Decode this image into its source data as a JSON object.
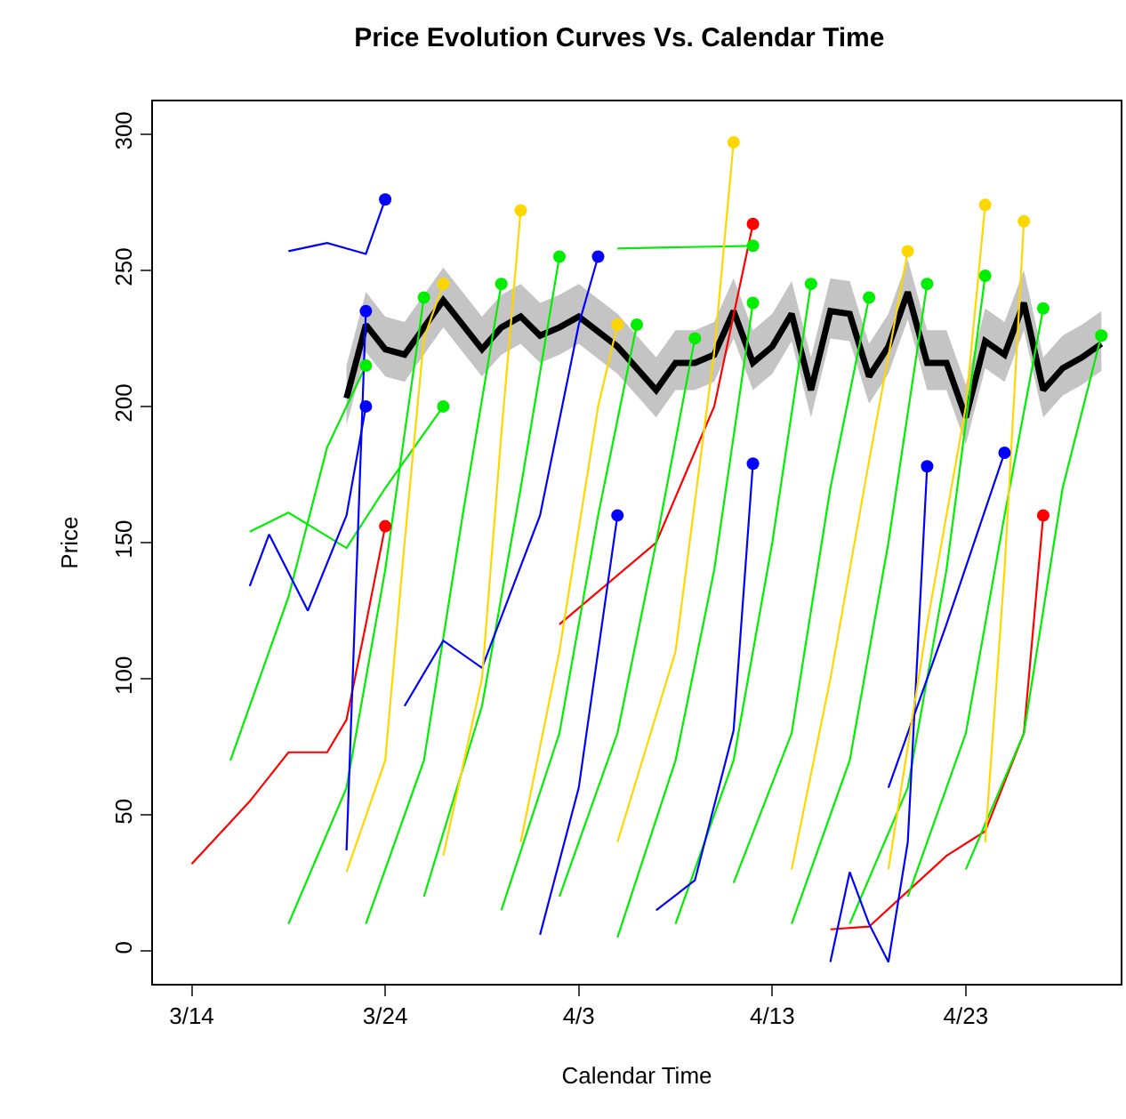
{
  "chart_data": {
    "type": "line",
    "title": "Price Evolution Curves Vs. Calendar Time",
    "xlabel": "Calendar Time",
    "ylabel": "Price",
    "xlim": [
      "--03-12",
      "--05-01"
    ],
    "xticks": [
      {
        "value": "--03-14",
        "label": "3/14"
      },
      {
        "value": "--03-24",
        "label": "3/24"
      },
      {
        "value": "--04-03",
        "label": "4/3"
      },
      {
        "value": "--04-13",
        "label": "4/13"
      },
      {
        "value": "--04-23",
        "label": "4/23"
      }
    ],
    "ylim": [
      -12,
      312
    ],
    "yticks": [
      0,
      50,
      100,
      150,
      200,
      250,
      300
    ],
    "line_style": "solid",
    "series": [
      {
        "color": "#ff0000",
        "x": [
          "--03-14",
          "--03-17",
          "--03-19",
          "--03-21",
          "--03-22",
          "--03-23",
          "--03-24"
        ],
        "values": [
          32,
          55,
          73,
          73,
          85,
          120,
          156
        ]
      },
      {
        "color": "#ff0000",
        "x": [
          "--04-02",
          "--04-07",
          "--04-10",
          "--04-12"
        ],
        "values": [
          120,
          150,
          200,
          267
        ]
      },
      {
        "color": "#ff0000",
        "x": [
          "--04-16",
          "--04-18",
          "--04-22",
          "--04-24",
          "--04-26",
          "--04-27"
        ],
        "values": [
          8,
          9,
          35,
          44,
          80,
          160
        ]
      },
      {
        "color": "#00ee00",
        "x": [
          "--03-16",
          "--03-19",
          "--03-21",
          "--03-23"
        ],
        "values": [
          70,
          130,
          185,
          215
        ]
      },
      {
        "color": "#00ee00",
        "x": [
          "--03-19",
          "--03-22",
          "--03-24",
          "--03-26"
        ],
        "values": [
          10,
          60,
          140,
          240
        ]
      },
      {
        "color": "#00ee00",
        "x": [
          "--03-23",
          "--03-26",
          "--03-28",
          "--03-30"
        ],
        "values": [
          10,
          70,
          160,
          245
        ]
      },
      {
        "color": "#00ee00",
        "x": [
          "--03-26",
          "--03-29",
          "--03-31",
          "--04-02"
        ],
        "values": [
          20,
          90,
          170,
          255
        ]
      },
      {
        "color": "#00ee00",
        "x": [
          "--03-30",
          "--04-02",
          "--04-04",
          "--04-06"
        ],
        "values": [
          15,
          80,
          160,
          230
        ]
      },
      {
        "color": "#00ee00",
        "x": [
          "--04-02",
          "--04-05",
          "--04-07",
          "--04-09"
        ],
        "values": [
          20,
          80,
          150,
          225
        ]
      },
      {
        "color": "#00ee00",
        "x": [
          "--04-05",
          "--04-08",
          "--04-10",
          "--04-12"
        ],
        "values": [
          5,
          70,
          140,
          238
        ]
      },
      {
        "color": "#00ee00",
        "x": [
          "--04-08",
          "--04-11",
          "--04-13",
          "--04-15"
        ],
        "values": [
          10,
          70,
          150,
          245
        ]
      },
      {
        "color": "#00ee00",
        "x": [
          "--04-11",
          "--04-14",
          "--04-16",
          "--04-18"
        ],
        "values": [
          25,
          80,
          170,
          240
        ]
      },
      {
        "color": "#00ee00",
        "x": [
          "--04-14",
          "--04-17",
          "--04-19",
          "--04-21"
        ],
        "values": [
          10,
          70,
          150,
          245
        ]
      },
      {
        "color": "#00ee00",
        "x": [
          "--04-17",
          "--04-20",
          "--04-22",
          "--04-24"
        ],
        "values": [
          10,
          60,
          140,
          248
        ]
      },
      {
        "color": "#00ee00",
        "x": [
          "--04-20",
          "--04-23",
          "--04-25",
          "--04-27"
        ],
        "values": [
          20,
          80,
          160,
          236
        ]
      },
      {
        "color": "#00ee00",
        "x": [
          "--04-23",
          "--04-26",
          "--04-28",
          "--04-30"
        ],
        "values": [
          30,
          80,
          170,
          226
        ]
      },
      {
        "color": "#00ee00",
        "x": [
          "--03-17",
          "--03-19",
          "--03-22",
          "--03-24",
          "--03-27"
        ],
        "values": [
          154,
          161,
          148,
          170,
          200
        ]
      },
      {
        "color": "#00ee00",
        "x": [
          "--04-05",
          "--04-12"
        ],
        "values": [
          258,
          259
        ]
      },
      {
        "color": "#0000ff",
        "x": [
          "--03-17",
          "--03-18",
          "--03-20",
          "--03-22",
          "--03-23"
        ],
        "values": [
          134,
          153,
          125,
          160,
          200
        ]
      },
      {
        "color": "#0000ff",
        "x": [
          "--03-22",
          "--03-23"
        ],
        "values": [
          37,
          235
        ]
      },
      {
        "color": "#0000ff",
        "x": [
          "--03-25",
          "--03-27",
          "--03-29",
          "--04-01",
          "--04-03",
          "--04-04"
        ],
        "values": [
          90,
          114,
          104,
          160,
          230,
          255
        ]
      },
      {
        "color": "#0000ff",
        "x": [
          "--04-01",
          "--04-03",
          "--04-05"
        ],
        "values": [
          6,
          60,
          160
        ]
      },
      {
        "color": "#0000ff",
        "x": [
          "--04-07",
          "--04-09",
          "--04-11",
          "--04-12"
        ],
        "values": [
          15,
          26,
          81,
          179
        ]
      },
      {
        "color": "#0000ff",
        "x": [
          "--04-16",
          "--04-17",
          "--04-18",
          "--04-19",
          "--04-20",
          "--04-21"
        ],
        "values": [
          -4,
          29,
          10,
          -4,
          40,
          178
        ]
      },
      {
        "color": "#0000ff",
        "x": [
          "--04-19",
          "--04-22",
          "--04-25"
        ],
        "values": [
          60,
          120,
          183
        ]
      },
      {
        "color": "#0000ff",
        "x": [
          "--03-19",
          "--03-21",
          "--03-23",
          "--03-24"
        ],
        "values": [
          257,
          260,
          256,
          276
        ]
      },
      {
        "color": "#ffd700",
        "x": [
          "--03-22",
          "--03-24",
          "--03-25",
          "--03-26",
          "--03-27"
        ],
        "values": [
          29,
          70,
          150,
          225,
          245
        ]
      },
      {
        "color": "#ffd700",
        "x": [
          "--03-27",
          "--03-29",
          "--03-30",
          "--03-31"
        ],
        "values": [
          35,
          100,
          190,
          272
        ]
      },
      {
        "color": "#ffd700",
        "x": [
          "--03-31",
          "--04-02",
          "--04-04",
          "--04-05"
        ],
        "values": [
          40,
          110,
          200,
          230
        ]
      },
      {
        "color": "#ffd700",
        "x": [
          "--04-05",
          "--04-08",
          "--04-10",
          "--04-11"
        ],
        "values": [
          40,
          110,
          220,
          297
        ]
      },
      {
        "color": "#ffd700",
        "x": [
          "--04-14",
          "--04-16",
          "--04-18",
          "--04-20"
        ],
        "values": [
          30,
          100,
          180,
          257
        ]
      },
      {
        "color": "#ffd700",
        "x": [
          "--04-19",
          "--04-21",
          "--04-23",
          "--04-24"
        ],
        "values": [
          30,
          120,
          200,
          274
        ]
      },
      {
        "color": "#ffd700",
        "x": [
          "--04-24",
          "--04-25",
          "--04-26"
        ],
        "values": [
          40,
          140,
          268
        ]
      },
      {
        "type": "scatter",
        "marker": "circle",
        "x": [
          "--03-24",
          "--04-12",
          "--04-27",
          "--03-23",
          "--03-23",
          "--04-04",
          "--04-05",
          "--04-12",
          "--04-21",
          "--04-25",
          "--03-24",
          "--03-27",
          "--03-31",
          "--04-05",
          "--04-11",
          "--04-20",
          "--04-24",
          "--04-26",
          "--03-23",
          "--03-26",
          "--03-30",
          "--04-02",
          "--04-06",
          "--04-09",
          "--04-12",
          "--04-15",
          "--04-18",
          "--04-21",
          "--04-24",
          "--04-27",
          "--04-30",
          "--03-27",
          "--04-12"
        ],
        "values": [
          156,
          267,
          160,
          200,
          235,
          255,
          160,
          179,
          178,
          183,
          276,
          245,
          272,
          230,
          297,
          257,
          274,
          268,
          215,
          240,
          245,
          255,
          230,
          225,
          238,
          245,
          240,
          245,
          248,
          236,
          226,
          200,
          259
        ],
        "colors": [
          "#ff0000",
          "#ff0000",
          "#ff0000",
          "#0000ff",
          "#0000ff",
          "#0000ff",
          "#0000ff",
          "#0000ff",
          "#0000ff",
          "#0000ff",
          "#0000ff",
          "#ffd700",
          "#ffd700",
          "#ffd700",
          "#ffd700",
          "#ffd700",
          "#ffd700",
          "#ffd700",
          "#00ee00",
          "#00ee00",
          "#00ee00",
          "#00ee00",
          "#00ee00",
          "#00ee00",
          "#00ee00",
          "#00ee00",
          "#00ee00",
          "#00ee00",
          "#00ee00",
          "#00ee00",
          "#00ee00",
          "#00ee00",
          "#00ee00"
        ]
      },
      {
        "color": "#000000",
        "x": [
          "--03-22",
          "--03-23",
          "--03-24",
          "--03-25",
          "--03-27",
          "--03-29",
          "--03-30",
          "--03-31",
          "--04-01",
          "--04-02",
          "--04-03",
          "--04-05",
          "--04-07",
          "--04-08",
          "--04-09",
          "--04-10",
          "--04-11",
          "--04-12",
          "--04-13",
          "--04-14",
          "--04-15",
          "--04-16",
          "--04-17",
          "--04-18",
          "--04-19",
          "--04-20",
          "--04-21",
          "--04-22",
          "--04-23",
          "--04-24",
          "--04-25",
          "--04-26",
          "--04-27",
          "--04-28",
          "--04-29",
          "--04-30"
        ],
        "values": [
          203,
          230,
          221,
          219,
          239,
          221,
          229,
          233,
          226,
          229,
          233,
          222,
          206,
          216,
          216,
          219,
          235,
          216,
          222,
          234,
          206,
          235,
          234,
          211,
          222,
          242,
          216,
          216,
          196,
          224,
          219,
          238,
          206,
          214,
          218,
          223
        ],
        "lower": [
          193,
          220,
          211,
          209,
          229,
          211,
          219,
          223,
          216,
          219,
          223,
          212,
          196,
          206,
          206,
          209,
          225,
          206,
          212,
          224,
          196,
          225,
          224,
          201,
          212,
          232,
          206,
          206,
          186,
          214,
          209,
          228,
          196,
          204,
          208,
          213
        ],
        "upper": [
          215,
          242,
          233,
          231,
          251,
          233,
          241,
          245,
          238,
          241,
          245,
          234,
          218,
          228,
          228,
          231,
          247,
          228,
          234,
          246,
          218,
          247,
          246,
          223,
          234,
          254,
          228,
          228,
          208,
          236,
          231,
          250,
          218,
          226,
          230,
          235
        ]
      }
    ]
  }
}
